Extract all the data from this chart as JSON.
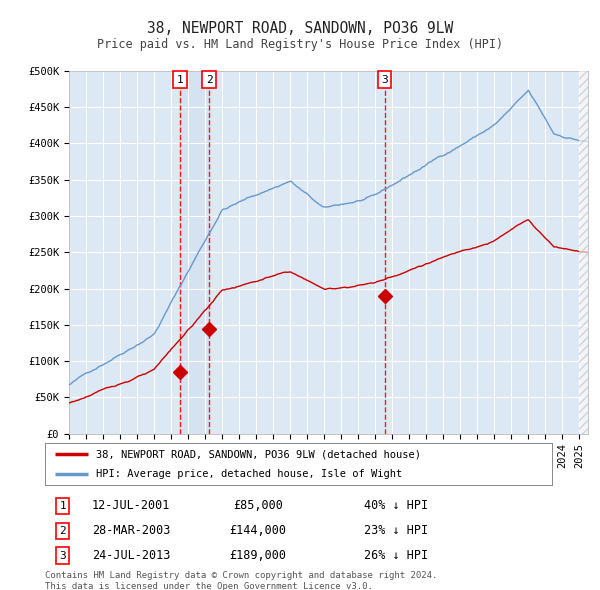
{
  "title": "38, NEWPORT ROAD, SANDOWN, PO36 9LW",
  "subtitle": "Price paid vs. HM Land Registry's House Price Index (HPI)",
  "background_color": "#ffffff",
  "plot_bg_color": "#dde8f5",
  "grid_color": "#ffffff",
  "hpi_color": "#6699cc",
  "price_color": "#cc0000",
  "ylim": [
    0,
    500000
  ],
  "yticks": [
    0,
    50000,
    100000,
    150000,
    200000,
    250000,
    300000,
    350000,
    400000,
    450000,
    500000
  ],
  "ytick_labels": [
    "£0",
    "£50K",
    "£100K",
    "£150K",
    "£200K",
    "£250K",
    "£300K",
    "£350K",
    "£400K",
    "£450K",
    "£500K"
  ],
  "transactions": [
    {
      "num": 1,
      "date": "12-JUL-2001",
      "x": 2001.53,
      "price": 85000,
      "pct": "40%",
      "dir": "↓"
    },
    {
      "num": 2,
      "date": "28-MAR-2003",
      "x": 2003.23,
      "price": 144000,
      "pct": "23%",
      "dir": "↓"
    },
    {
      "num": 3,
      "date": "24-JUL-2013",
      "x": 2013.55,
      "price": 189000,
      "pct": "26%",
      "dir": "↓"
    }
  ],
  "legend_label_red": "38, NEWPORT ROAD, SANDOWN, PO36 9LW (detached house)",
  "legend_label_blue": "HPI: Average price, detached house, Isle of Wight",
  "footnote": "Contains HM Land Registry data © Crown copyright and database right 2024.\nThis data is licensed under the Open Government Licence v3.0.",
  "xmin": 1995,
  "xmax": 2025.5
}
